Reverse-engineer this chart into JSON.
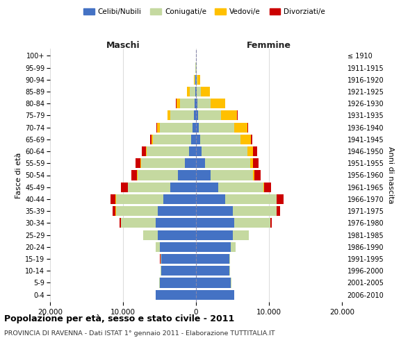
{
  "age_groups": [
    "0-4",
    "5-9",
    "10-14",
    "15-19",
    "20-24",
    "25-29",
    "30-34",
    "35-39",
    "40-44",
    "45-49",
    "50-54",
    "55-59",
    "60-64",
    "65-69",
    "70-74",
    "75-79",
    "80-84",
    "85-89",
    "90-94",
    "95-99",
    "100+"
  ],
  "birth_years": [
    "2006-2010",
    "2001-2005",
    "1996-2000",
    "1991-1995",
    "1986-1990",
    "1981-1985",
    "1976-1980",
    "1971-1975",
    "1966-1970",
    "1961-1965",
    "1956-1960",
    "1951-1955",
    "1946-1950",
    "1941-1945",
    "1936-1940",
    "1931-1935",
    "1926-1930",
    "1921-1925",
    "1916-1920",
    "1911-1915",
    "≤ 1910"
  ],
  "colors": {
    "celibi": "#4472C4",
    "coniugati": "#C5D9A0",
    "vedovi": "#FFC000",
    "divorziati": "#CC0000"
  },
  "maschi": {
    "celibi": [
      5500,
      5000,
      4800,
      4800,
      5000,
      5200,
      5500,
      5200,
      4500,
      3500,
      2500,
      1500,
      1000,
      700,
      500,
      300,
      200,
      100,
      50,
      30,
      10
    ],
    "coniugati": [
      20,
      30,
      50,
      100,
      500,
      2000,
      4800,
      5800,
      6500,
      5800,
      5500,
      6000,
      5800,
      5200,
      4500,
      3200,
      2000,
      800,
      100,
      30,
      10
    ],
    "vedovi": [
      0,
      0,
      0,
      0,
      5,
      5,
      10,
      20,
      30,
      40,
      60,
      80,
      100,
      200,
      300,
      400,
      500,
      300,
      100,
      20,
      5
    ],
    "divorziati": [
      0,
      0,
      0,
      10,
      20,
      50,
      150,
      400,
      700,
      900,
      800,
      700,
      500,
      150,
      100,
      50,
      30,
      20,
      10,
      5,
      2
    ]
  },
  "femmine": {
    "celibi": [
      5200,
      4800,
      4600,
      4600,
      4800,
      5000,
      5200,
      5000,
      4000,
      3000,
      2000,
      1200,
      800,
      600,
      400,
      250,
      180,
      100,
      50,
      30,
      10
    ],
    "coniugati": [
      20,
      30,
      50,
      100,
      600,
      2200,
      5000,
      6000,
      7000,
      6200,
      5800,
      6200,
      6200,
      5500,
      4800,
      3200,
      1800,
      600,
      100,
      20,
      5
    ],
    "vedovi": [
      0,
      0,
      0,
      0,
      5,
      5,
      15,
      30,
      60,
      100,
      200,
      400,
      800,
      1400,
      1800,
      2200,
      2000,
      1200,
      400,
      80,
      20
    ],
    "divorziati": [
      0,
      0,
      0,
      10,
      30,
      80,
      200,
      500,
      900,
      1000,
      900,
      800,
      600,
      200,
      120,
      80,
      40,
      20,
      10,
      5,
      2
    ]
  },
  "xlim": 20000,
  "xticks": [
    -20000,
    -10000,
    0,
    10000,
    20000
  ],
  "xticklabels": [
    "20.000",
    "10.000",
    "0",
    "10.000",
    "20.000"
  ],
  "title": "Popolazione per età, sesso e stato civile - 2011",
  "subtitle": "PROVINCIA DI RAVENNA - Dati ISTAT 1° gennaio 2011 - Elaborazione TUTTITALIA.IT",
  "ylabel_left": "Fasce di età",
  "ylabel_right": "Anni di nascita",
  "legend_labels": [
    "Celibi/Nubili",
    "Coniugati/e",
    "Vedovi/e",
    "Divorziati/e"
  ],
  "bg_color": "#FFFFFF",
  "grid_color": "#CCCCCC"
}
